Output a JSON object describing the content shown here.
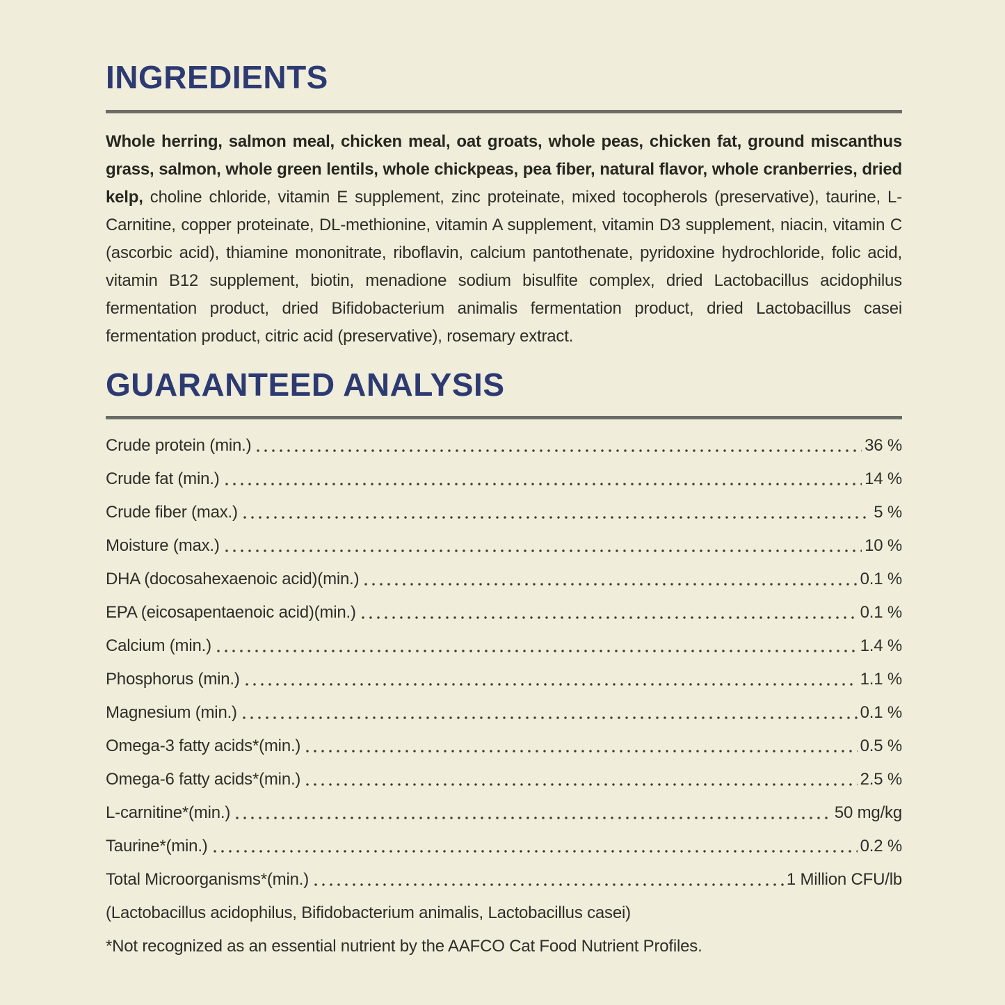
{
  "page": {
    "background_color": "#f0eedb",
    "accent_color": "#2d3a72",
    "text_color": "#2e2d27",
    "rule_color": "#6d6d68"
  },
  "ingredients": {
    "title": "INGREDIENTS",
    "bold_text": "Whole herring, salmon meal, chicken meal, oat groats, whole peas, chicken fat, ground miscanthus grass, salmon, whole green lentils, whole chickpeas, pea fiber, natural flavor, whole cranberries, dried kelp,",
    "regular_text": " choline chloride, vitamin E supplement, zinc proteinate, mixed tocopherols (preservative), taurine, L-Carnitine, copper proteinate, DL-methionine, vitamin A supplement, vitamin D3 supplement, niacin, vitamin C (ascorbic acid), thiamine mononitrate, riboflavin, calcium pantothenate, pyridoxine hydrochloride, folic acid, vitamin B12 supplement, biotin, menadione sodium bisulfite complex, dried Lactobacillus acidophilus fermentation product, dried Bifidobacterium animalis fermentation product, dried Lactobacillus casei fermentation product, citric acid (preservative), rosemary extract."
  },
  "guaranteed_analysis": {
    "title": "GUARANTEED ANALYSIS",
    "rows": [
      {
        "label": "Crude protein (min.)",
        "value": "36 %"
      },
      {
        "label": "Crude fat (min.)",
        "value": "14 %"
      },
      {
        "label": "Crude fiber (max.)",
        "value": "5 %"
      },
      {
        "label": "Moisture (max.)",
        "value": "10 %"
      },
      {
        "label": "DHA (docosahexaenoic acid)(min.)",
        "value": "0.1 %"
      },
      {
        "label": "EPA (eicosapentaenoic acid)(min.)",
        "value": "0.1 %"
      },
      {
        "label": "Calcium (min.)",
        "value": "1.4 %"
      },
      {
        "label": "Phosphorus (min.)",
        "value": "1.1 %"
      },
      {
        "label": "Magnesium (min.)",
        "value": "0.1 %"
      },
      {
        "label": "Omega-3 fatty acids*(min.)",
        "value": "0.5 %"
      },
      {
        "label": "Omega-6 fatty acids*(min.)",
        "value": "2.5 %"
      },
      {
        "label": "L-carnitine*(min.)",
        "value": "50 mg/kg"
      },
      {
        "label": "Taurine*(min.)",
        "value": "0.2 %"
      },
      {
        "label": "Total Microorganisms*(min.)",
        "value": "1 Million CFU/lb"
      }
    ],
    "note_line": "(Lactobacillus acidophilus, Bifidobacterium animalis, Lactobacillus casei)",
    "footnote": "*Not recognized as an essential nutrient by the AAFCO Cat Food Nutrient Profiles."
  }
}
